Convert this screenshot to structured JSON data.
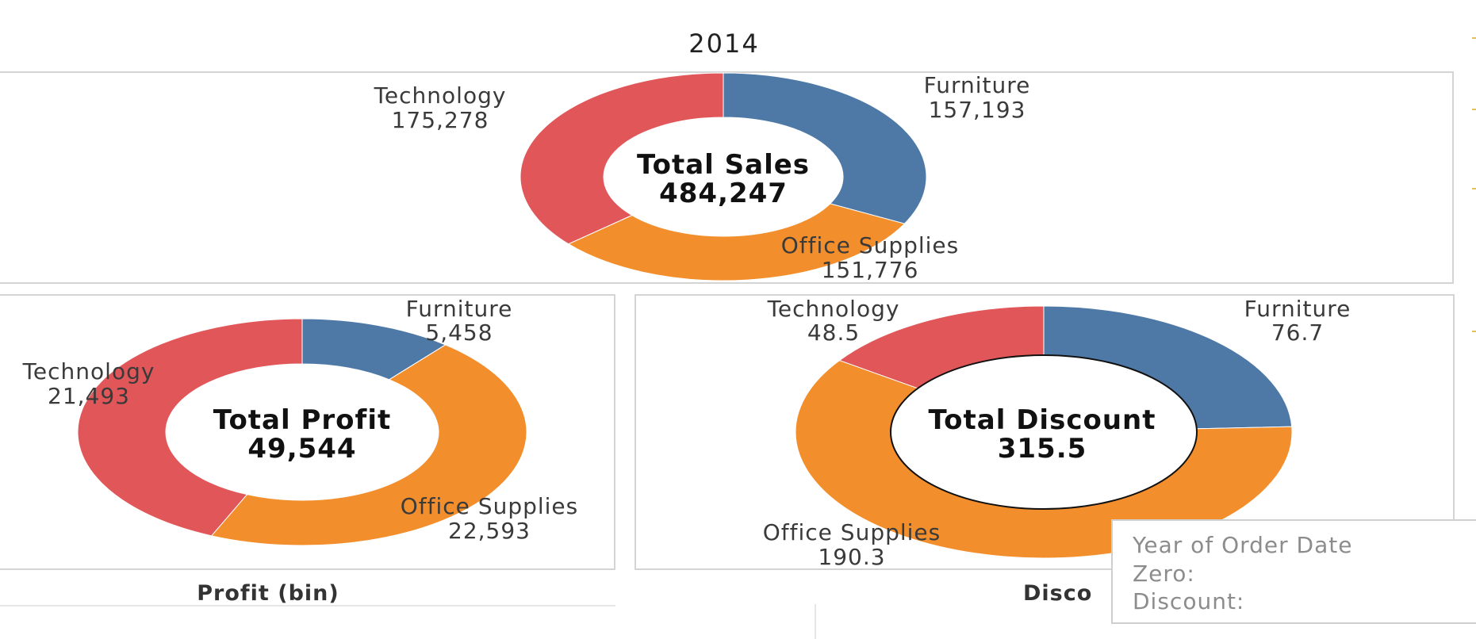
{
  "title": "2014",
  "colors": {
    "Furniture": "#4e79a7",
    "Office Supplies": "#f28e2b",
    "Technology": "#e15759"
  },
  "chart_data": [
    {
      "type": "pie",
      "name": "sales",
      "center_title": "Total Sales",
      "center_value": "484,247",
      "slices": [
        {
          "category": "Furniture",
          "value": 157193,
          "display": "157,193"
        },
        {
          "category": "Office Supplies",
          "value": 151776,
          "display": "151,776"
        },
        {
          "category": "Technology",
          "value": 175278,
          "display": "175,278"
        }
      ]
    },
    {
      "type": "pie",
      "name": "profit",
      "center_title": "Total Profit",
      "center_value": "49,544",
      "footer": "Profit (bin)",
      "slices": [
        {
          "category": "Furniture",
          "value": 5458,
          "display": "5,458"
        },
        {
          "category": "Office Supplies",
          "value": 22593,
          "display": "22,593"
        },
        {
          "category": "Technology",
          "value": 21493,
          "display": "21,493"
        }
      ]
    },
    {
      "type": "pie",
      "name": "discount",
      "center_title": "Total Discount",
      "center_value": "315.5",
      "footer": "Disco",
      "slices": [
        {
          "category": "Furniture",
          "value": 76.7,
          "display": "76.7"
        },
        {
          "category": "Office Supplies",
          "value": 190.3,
          "display": "190.3"
        },
        {
          "category": "Technology",
          "value": 48.5,
          "display": "48.5"
        }
      ]
    }
  ],
  "tooltip": {
    "line1": "Year of Order Date",
    "line2": "Zero:",
    "line3": "Discount:"
  }
}
